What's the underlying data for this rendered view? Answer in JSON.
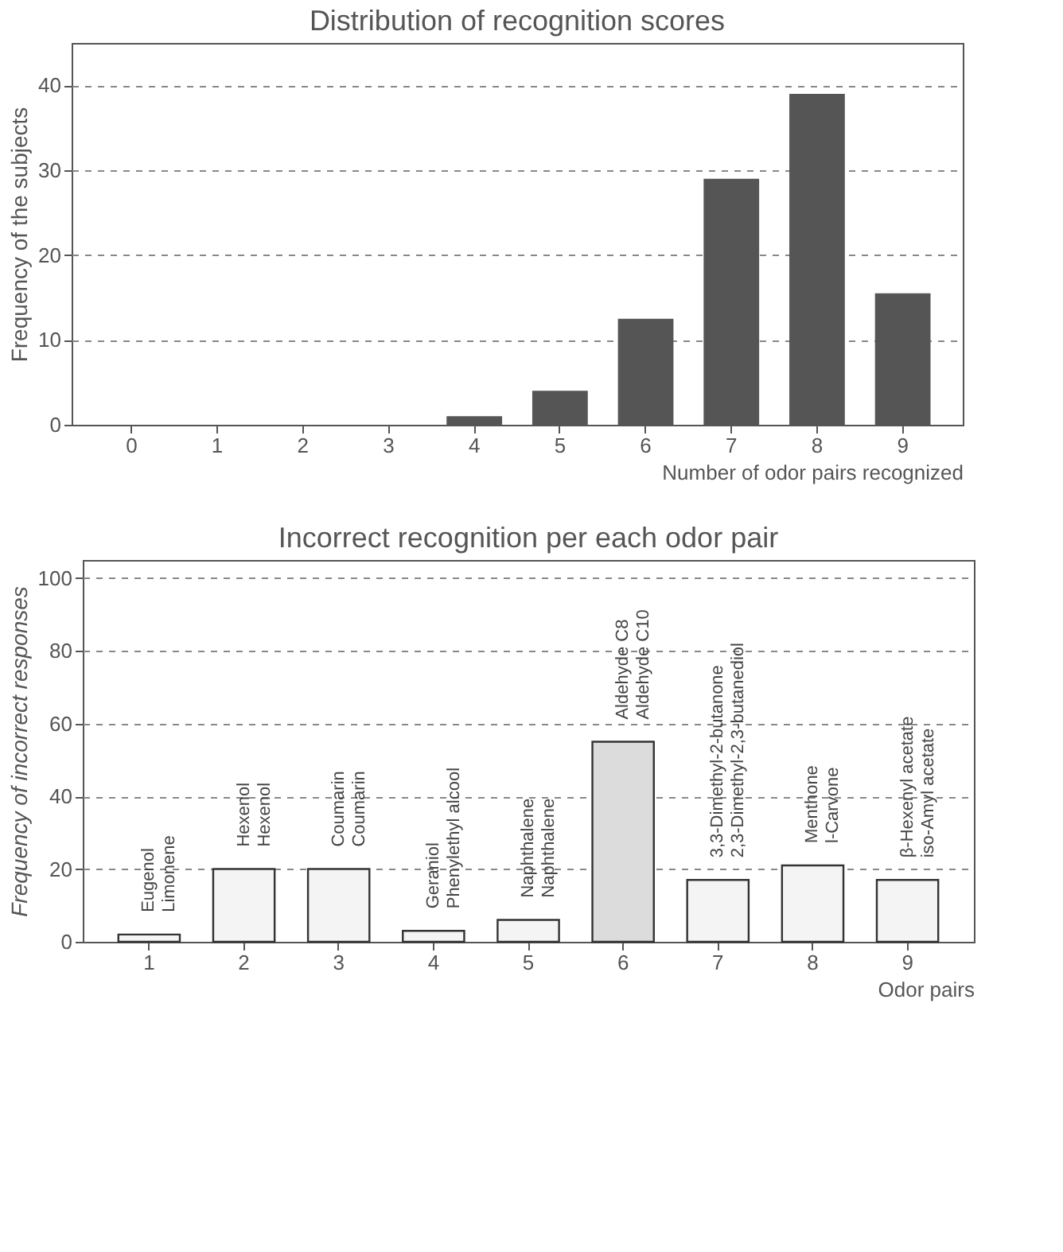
{
  "chart_data": [
    {
      "type": "bar",
      "title": "Distribution of recognition scores",
      "xlabel": "Number of odor pairs recognized",
      "ylabel": "Frequency of the subjects",
      "categories": [
        "0",
        "1",
        "2",
        "3",
        "4",
        "5",
        "6",
        "7",
        "8",
        "9"
      ],
      "values": [
        0,
        0,
        0,
        0,
        1,
        4,
        12.5,
        29,
        39,
        15.5
      ],
      "color": "#555555",
      "ylim": [
        0,
        45
      ],
      "yticks": [
        0,
        10,
        20,
        30,
        40
      ],
      "grid": "y"
    },
    {
      "type": "bar",
      "title": "Incorrect recognition per each odor pair",
      "xlabel": "Odor pairs",
      "ylabel": "Frequency of incorrect responses",
      "categories": [
        "1",
        "2",
        "3",
        "4",
        "5",
        "6",
        "7",
        "8",
        "9"
      ],
      "values": [
        2,
        20,
        20,
        3,
        6,
        55,
        17,
        21,
        17
      ],
      "colors": [
        "#f4f4f4",
        "#f4f4f4",
        "#f4f4f4",
        "#f4f4f4",
        "#f4f4f4",
        "#dcdcdc",
        "#f4f4f4",
        "#f4f4f4",
        "#f4f4f4"
      ],
      "ylim": [
        0,
        105
      ],
      "yticks": [
        0,
        20,
        40,
        60,
        80,
        100
      ],
      "grid": "y",
      "annotations": [
        {
          "text": "Eugenol\nLimonene",
          "x": "1",
          "y": 2
        },
        {
          "text": "Hexenol\nHexenol",
          "x": "2",
          "y": 20
        },
        {
          "text": "Coumarin\nCoumarin",
          "x": "3",
          "y": 20
        },
        {
          "text": "Geraniol\nPhenylethyl alcool",
          "x": "4",
          "y": 3
        },
        {
          "text": "Naphthalene\nNaphthalene",
          "x": "5",
          "y": 6
        },
        {
          "text": "Aldehyde C8\nAldehyde C10",
          "x": "6",
          "y": 55
        },
        {
          "text": "3,3-Dimethyl-2-butanone\n2,3-Dimethyl-2,3-butanediol",
          "x": "7",
          "y": 17
        },
        {
          "text": "Menthone\nl-Carvone",
          "x": "8",
          "y": 21
        },
        {
          "text": "β-Hexenyl acetate\niso-Amyl acetate",
          "x": "9",
          "y": 17
        }
      ]
    }
  ]
}
